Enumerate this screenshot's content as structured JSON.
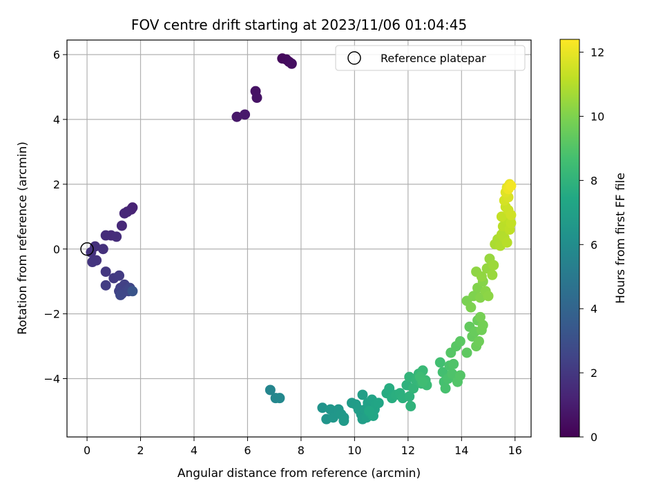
{
  "chart_data": {
    "type": "scatter",
    "title": "FOV centre drift starting at 2023/11/06 01:04:45",
    "xlabel": "Angular distance from reference (arcmin)",
    "ylabel": "Rotation from reference (arcmin)",
    "xlim": [
      -0.75,
      16.6
    ],
    "ylim": [
      -5.8,
      6.45
    ],
    "xticks": [
      "0",
      "2",
      "4",
      "6",
      "8",
      "10",
      "12",
      "14",
      "16"
    ],
    "yticks": [
      "−4",
      "−2",
      "0",
      "2",
      "4",
      "6"
    ],
    "grid": true,
    "legend": {
      "position": "top-right",
      "entries": [
        "Reference platepar"
      ]
    },
    "reference_point": {
      "x": 0,
      "y": 0
    },
    "colorbar": {
      "label": "Hours from first FF file",
      "range": [
        0,
        12.4
      ],
      "ticks": [
        "0",
        "2",
        "4",
        "6",
        "8",
        "10",
        "12"
      ],
      "colormap": "viridis"
    },
    "points": [
      [
        7.3,
        5.88,
        0.3
      ],
      [
        7.45,
        5.85,
        0.35
      ],
      [
        7.55,
        5.78,
        0.4
      ],
      [
        7.65,
        5.72,
        0.45
      ],
      [
        6.3,
        4.87,
        0.6
      ],
      [
        6.35,
        4.67,
        0.65
      ],
      [
        5.6,
        4.08,
        0.8
      ],
      [
        5.9,
        4.15,
        0.85
      ],
      [
        1.7,
        1.28,
        1.2
      ],
      [
        1.65,
        1.22,
        1.25
      ],
      [
        1.5,
        1.15,
        1.3
      ],
      [
        1.4,
        1.1,
        1.35
      ],
      [
        1.3,
        0.72,
        1.45
      ],
      [
        0.9,
        0.42,
        1.5
      ],
      [
        0.7,
        0.42,
        1.55
      ],
      [
        1.1,
        0.38,
        1.6
      ],
      [
        0.3,
        0.08,
        1.7
      ],
      [
        0.6,
        0.0,
        1.75
      ],
      [
        0.15,
        -0.1,
        1.8
      ],
      [
        0.35,
        -0.35,
        1.85
      ],
      [
        0.2,
        -0.4,
        1.9
      ],
      [
        0.7,
        -0.7,
        2.0
      ],
      [
        1.0,
        -0.9,
        2.1
      ],
      [
        1.2,
        -0.82,
        2.15
      ],
      [
        0.7,
        -1.12,
        2.2
      ],
      [
        1.25,
        -1.2,
        2.3
      ],
      [
        1.4,
        -1.1,
        2.35
      ],
      [
        1.2,
        -1.3,
        2.4
      ],
      [
        1.3,
        -1.38,
        2.45
      ],
      [
        1.5,
        -1.25,
        2.5
      ],
      [
        1.6,
        -1.2,
        2.55
      ],
      [
        1.55,
        -1.3,
        2.6
      ],
      [
        1.25,
        -1.42,
        2.65
      ],
      [
        1.7,
        -1.3,
        3.2
      ],
      [
        6.85,
        -4.35,
        5.6
      ],
      [
        7.05,
        -4.6,
        5.7
      ],
      [
        7.2,
        -4.6,
        5.75
      ],
      [
        8.8,
        -4.9,
        6.3
      ],
      [
        8.95,
        -5.25,
        6.4
      ],
      [
        9.1,
        -4.95,
        6.45
      ],
      [
        9.2,
        -5.2,
        6.5
      ],
      [
        9.4,
        -4.95,
        6.55
      ],
      [
        9.5,
        -5.1,
        6.6
      ],
      [
        9.6,
        -5.2,
        6.65
      ],
      [
        9.6,
        -5.3,
        6.7
      ],
      [
        9.9,
        -4.75,
        6.75
      ],
      [
        10.05,
        -4.8,
        6.8
      ],
      [
        10.15,
        -4.95,
        6.82
      ],
      [
        10.25,
        -5.1,
        6.85
      ],
      [
        10.3,
        -5.25,
        6.88
      ],
      [
        10.3,
        -4.5,
        6.9
      ],
      [
        10.4,
        -4.95,
        6.95
      ],
      [
        10.45,
        -5.2,
        7.0
      ],
      [
        10.5,
        -4.75,
        7.05
      ],
      [
        10.6,
        -5.1,
        7.1
      ],
      [
        10.65,
        -4.65,
        7.15
      ],
      [
        10.75,
        -4.95,
        7.2
      ],
      [
        10.8,
        -4.8,
        7.25
      ],
      [
        10.9,
        -4.75,
        7.3
      ],
      [
        10.7,
        -5.15,
        7.35
      ],
      [
        10.55,
        -5.0,
        7.4
      ],
      [
        11.2,
        -4.45,
        7.6
      ],
      [
        11.3,
        -4.3,
        7.65
      ],
      [
        11.4,
        -4.6,
        7.7
      ],
      [
        11.55,
        -4.5,
        7.75
      ],
      [
        11.7,
        -4.45,
        7.8
      ],
      [
        11.8,
        -4.6,
        7.85
      ],
      [
        11.95,
        -4.2,
        7.9
      ],
      [
        12.05,
        -4.55,
        7.95
      ],
      [
        12.1,
        -4.85,
        8.0
      ],
      [
        12.05,
        -3.95,
        8.05
      ],
      [
        12.2,
        -4.3,
        8.1
      ],
      [
        12.3,
        -4.05,
        8.15
      ],
      [
        12.4,
        -3.85,
        8.2
      ],
      [
        12.5,
        -4.15,
        8.25
      ],
      [
        12.55,
        -3.75,
        8.3
      ],
      [
        12.65,
        -4.05,
        8.35
      ],
      [
        12.7,
        -4.2,
        8.4
      ],
      [
        12.45,
        -3.95,
        8.45
      ],
      [
        12.55,
        -4.1,
        8.5
      ],
      [
        13.2,
        -3.5,
        8.6
      ],
      [
        13.3,
        -3.8,
        8.65
      ],
      [
        13.35,
        -4.1,
        8.7
      ],
      [
        13.4,
        -4.3,
        8.75
      ],
      [
        13.5,
        -4.0,
        8.8
      ],
      [
        13.55,
        -3.6,
        8.85
      ],
      [
        13.65,
        -3.85,
        8.9
      ],
      [
        13.7,
        -3.55,
        8.95
      ],
      [
        13.85,
        -4.1,
        9.0
      ],
      [
        13.95,
        -3.9,
        9.05
      ],
      [
        13.6,
        -3.2,
        9.1
      ],
      [
        13.8,
        -3.0,
        9.15
      ],
      [
        13.95,
        -2.85,
        9.2
      ],
      [
        14.2,
        -3.2,
        9.3
      ],
      [
        14.3,
        -2.4,
        9.4
      ],
      [
        14.4,
        -2.7,
        9.45
      ],
      [
        14.5,
        -2.55,
        9.5
      ],
      [
        14.6,
        -2.2,
        9.55
      ],
      [
        14.55,
        -3.0,
        9.6
      ],
      [
        14.65,
        -2.85,
        9.65
      ],
      [
        14.75,
        -2.5,
        9.7
      ],
      [
        14.8,
        -2.35,
        9.75
      ],
      [
        14.7,
        -2.1,
        9.8
      ],
      [
        14.2,
        -1.6,
        9.9
      ],
      [
        14.35,
        -1.8,
        9.95
      ],
      [
        14.45,
        -1.45,
        10.0
      ],
      [
        14.6,
        -1.2,
        10.05
      ],
      [
        14.7,
        -1.5,
        10.1
      ],
      [
        14.8,
        -1.0,
        10.15
      ],
      [
        14.9,
        -1.3,
        10.2
      ],
      [
        15.0,
        -1.45,
        10.25
      ],
      [
        14.55,
        -0.7,
        10.3
      ],
      [
        14.75,
        -0.85,
        10.35
      ],
      [
        14.95,
        -0.6,
        10.4
      ],
      [
        15.05,
        -0.3,
        10.45
      ],
      [
        15.15,
        -0.8,
        10.5
      ],
      [
        15.2,
        -0.5,
        10.55
      ],
      [
        15.25,
        0.15,
        10.8
      ],
      [
        15.35,
        0.3,
        10.85
      ],
      [
        15.45,
        0.1,
        10.9
      ],
      [
        15.5,
        0.45,
        10.95
      ],
      [
        15.6,
        0.35,
        11.0
      ],
      [
        15.7,
        0.2,
        11.05
      ],
      [
        15.55,
        0.7,
        11.1
      ],
      [
        15.7,
        0.9,
        11.15
      ],
      [
        15.8,
        0.6,
        11.2
      ],
      [
        15.85,
        0.8,
        11.25
      ],
      [
        15.5,
        1.0,
        11.3
      ],
      [
        15.65,
        1.3,
        11.4
      ],
      [
        15.75,
        1.2,
        11.45
      ],
      [
        15.85,
        1.05,
        11.5
      ],
      [
        15.6,
        1.5,
        11.6
      ],
      [
        15.75,
        1.6,
        11.7
      ],
      [
        15.65,
        1.75,
        11.8
      ],
      [
        15.7,
        1.9,
        11.9
      ],
      [
        15.8,
        2.0,
        12.0
      ],
      [
        15.75,
        1.85,
        12.1
      ],
      [
        15.85,
        1.95,
        12.2
      ]
    ]
  }
}
